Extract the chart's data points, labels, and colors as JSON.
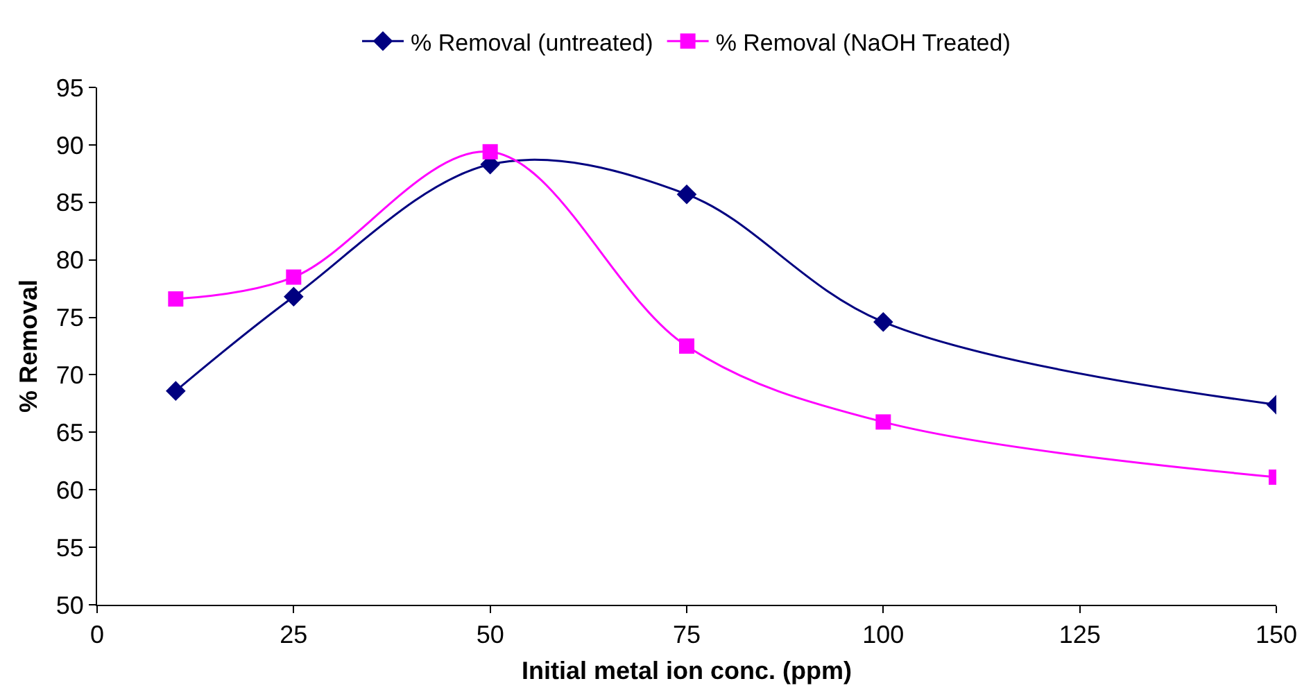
{
  "chart_data": {
    "type": "line",
    "xlabel": "Initial metal ion conc. (ppm)",
    "ylabel": "% Removal",
    "x": [
      10,
      25,
      50,
      75,
      100,
      150
    ],
    "series": [
      {
        "name": "% Removal (untreated)",
        "color": "#000080",
        "marker": "diamond",
        "values": [
          68.6,
          76.8,
          88.3,
          85.7,
          74.6,
          67.4
        ]
      },
      {
        "name": "% Removal (NaOH Treated)",
        "color": "#ff00ff",
        "marker": "square",
        "values": [
          76.6,
          78.5,
          89.4,
          72.5,
          65.9,
          61.1
        ]
      }
    ],
    "xlim": [
      0,
      150
    ],
    "xticks": [
      0,
      25,
      50,
      75,
      100,
      125,
      150
    ],
    "ylim": [
      50,
      95
    ],
    "yticks": [
      50,
      55,
      60,
      65,
      70,
      75,
      80,
      85,
      90,
      95
    ],
    "grid": false,
    "legend": "top",
    "line_style": "solid"
  }
}
